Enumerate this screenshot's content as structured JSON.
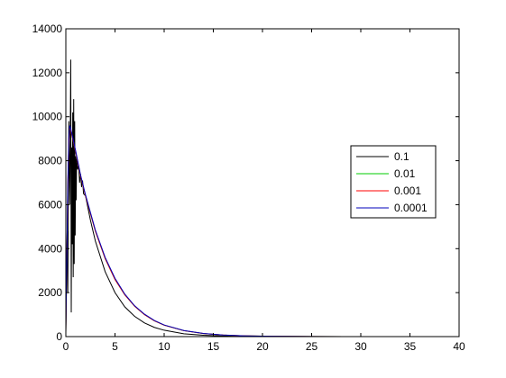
{
  "chart_data": {
    "type": "line",
    "title": "",
    "xlabel": "",
    "ylabel": "",
    "xlim": [
      0,
      40
    ],
    "ylim": [
      0,
      14000
    ],
    "xticks": [
      0,
      5,
      10,
      15,
      20,
      25,
      30,
      35,
      40
    ],
    "yticks": [
      0,
      2000,
      4000,
      6000,
      8000,
      10000,
      12000,
      14000
    ],
    "grid": false,
    "legend_position": "right",
    "series": [
      {
        "name": "0.1",
        "color": "#000000",
        "x": [
          0,
          0.15,
          0.2,
          0.3,
          0.4,
          0.5,
          0.55,
          0.6,
          0.65,
          0.7,
          0.75,
          0.8,
          0.85,
          0.9,
          0.95,
          1.0,
          1.05,
          1.1,
          1.2,
          1.3,
          1.4,
          1.5,
          1.6,
          1.7,
          1.8,
          2.0,
          2.5,
          3,
          4,
          5,
          6,
          7,
          8,
          9,
          10,
          12,
          14,
          16,
          18,
          20,
          25,
          30,
          35,
          40
        ],
        "y": [
          500,
          4800,
          2000,
          9800,
          6000,
          12600,
          1100,
          8600,
          4200,
          10200,
          2700,
          10800,
          3300,
          9800,
          4600,
          8200,
          6200,
          8100,
          7600,
          7800,
          7000,
          7400,
          6800,
          7100,
          6500,
          6400,
          5300,
          4350,
          2950,
          2000,
          1350,
          920,
          620,
          420,
          290,
          130,
          60,
          28,
          13,
          6,
          1,
          0,
          0,
          0
        ]
      },
      {
        "name": "0.01",
        "color": "#00cc00",
        "x": [
          0,
          0.1,
          0.2,
          0.3,
          0.4,
          0.5,
          0.7,
          1.0,
          1.5,
          2,
          3,
          4,
          5,
          6,
          7,
          8,
          9,
          10,
          12,
          14,
          16,
          18,
          20,
          25,
          30,
          35,
          40
        ],
        "y": [
          200,
          3500,
          6800,
          8800,
          9500,
          9400,
          9000,
          8400,
          7300,
          6400,
          4800,
          3550,
          2600,
          1900,
          1380,
          1000,
          720,
          520,
          270,
          140,
          70,
          36,
          18,
          3,
          0.5,
          0,
          0
        ]
      },
      {
        "name": "0.001",
        "color": "#ff0000",
        "x": [
          0,
          0.1,
          0.2,
          0.3,
          0.4,
          0.5,
          0.7,
          1.0,
          1.5,
          2,
          3,
          4,
          5,
          6,
          7,
          8,
          9,
          10,
          12,
          14,
          16,
          18,
          20,
          25,
          30,
          35,
          40
        ],
        "y": [
          200,
          3500,
          6800,
          8800,
          9500,
          9400,
          9000,
          8400,
          7300,
          6400,
          4800,
          3550,
          2600,
          1900,
          1380,
          1000,
          720,
          520,
          270,
          140,
          70,
          36,
          18,
          3,
          0.5,
          0,
          0
        ]
      },
      {
        "name": "0.0001",
        "color": "#0000bb",
        "x": [
          0,
          0.1,
          0.2,
          0.3,
          0.4,
          0.5,
          0.7,
          1.0,
          1.5,
          2,
          3,
          4,
          5,
          6,
          7,
          8,
          9,
          10,
          12,
          14,
          16,
          18,
          20,
          25,
          30,
          35,
          40
        ],
        "y": [
          200,
          3600,
          7000,
          9000,
          9600,
          9450,
          9050,
          8450,
          7350,
          6450,
          4850,
          3600,
          2650,
          1930,
          1400,
          1020,
          735,
          530,
          275,
          143,
          72,
          37,
          19,
          3,
          0.5,
          0,
          0
        ]
      }
    ]
  }
}
